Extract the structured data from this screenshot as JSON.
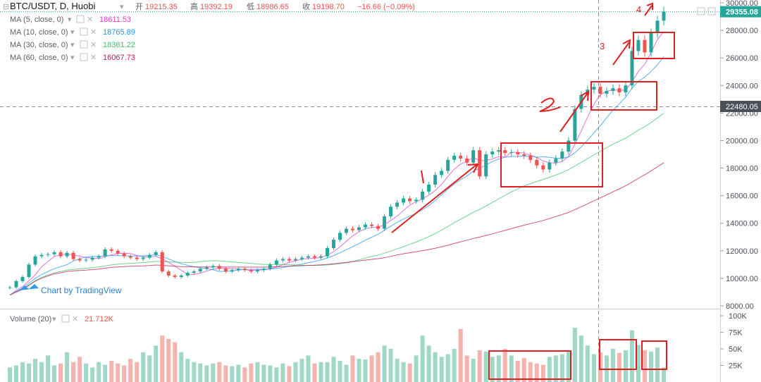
{
  "header": {
    "symbol": "BTC/USDT, D, Huobi",
    "open_label": "开",
    "open": "19215.35",
    "high_label": "高",
    "high": "19392.19",
    "low_label": "低",
    "low": "18986.65",
    "close_label": "收",
    "close": "19198.70",
    "change": "−16.66 (−0.09%)"
  },
  "indicators": [
    {
      "label": "MA (5, close, 0)",
      "value": "18611.53",
      "color": "#e040c8"
    },
    {
      "label": "MA (10, close, 0)",
      "value": "18765.89",
      "color": "#2196f3"
    },
    {
      "label": "MA (30, close, 0)",
      "value": "18361.22",
      "color": "#3cc46a"
    },
    {
      "label": "MA (60, close, 0)",
      "value": "16067.73",
      "color": "#c2185b"
    }
  ],
  "volume_panel": {
    "label": "Volume (20)",
    "value": "21.712K"
  },
  "watermark": "Chart by TradingView",
  "price_axis": {
    "ticks": [
      "30000.00",
      "28000.00",
      "26000.00",
      "24000.00",
      "22480.05",
      "22000.00",
      "20000.00",
      "18000.00",
      "16000.00",
      "14000.00",
      "12000.00",
      "10000.00",
      "8000.00"
    ],
    "last_price": "29355.08",
    "crosshair_price": "22480.05"
  },
  "volume_axis": {
    "ticks": [
      "100K",
      "75K",
      "50K",
      "25K"
    ]
  },
  "annotations": [
    "1",
    "2",
    "3",
    "4"
  ],
  "colors": {
    "up": "#26a69a",
    "down": "#ef5350",
    "annotation": "#e02020",
    "last_price_bg": "#26a69a"
  },
  "chart_data": {
    "type": "candlestick",
    "series": [
      {
        "name": "BTC/USDT, D, Huobi",
        "values": [
          9350,
          9800,
          10100,
          11000,
          11600,
          11700,
          11750,
          11900,
          11600,
          11850,
          11400,
          11300,
          11350,
          11500,
          11600,
          12100,
          12000,
          11800,
          11600,
          11500,
          11400,
          11500,
          11700,
          11900,
          10500,
          10200,
          10100,
          10200,
          10400,
          10500,
          10700,
          10800,
          10900,
          10700,
          10500,
          10600,
          10700,
          10600,
          10500,
          10600,
          10700,
          11000,
          11300,
          11400,
          11300,
          11400,
          11500,
          11600,
          11500,
          11600,
          12200,
          12800,
          13300,
          13600,
          13500,
          13700,
          13900,
          13800,
          13600,
          14500,
          15200,
          15500,
          15800,
          15600,
          15700,
          16300,
          16800,
          17500,
          17800,
          18600,
          18900,
          18700,
          18400,
          19300,
          17400,
          19000,
          19200,
          19300,
          19100,
          19150,
          19000,
          18900,
          18600,
          18200,
          17900,
          18400,
          18700,
          19200,
          20000,
          22300,
          23300,
          23700,
          23900,
          23400,
          23600,
          23800,
          23500,
          24000,
          26500,
          27300,
          26400,
          27800,
          28700,
          29355
        ]
      },
      {
        "name": "Volume",
        "values": [
          22,
          25,
          30,
          28,
          35,
          30,
          40,
          25,
          28,
          45,
          30,
          38,
          28,
          22,
          30,
          26,
          32,
          28,
          25,
          35,
          30,
          45,
          40,
          55,
          70,
          65,
          60,
          45,
          35,
          30,
          28,
          25,
          28,
          30,
          25,
          24,
          26,
          22,
          28,
          30,
          26,
          25,
          22,
          28,
          24,
          30,
          35,
          40,
          28,
          30,
          30,
          38,
          32,
          26,
          40,
          35,
          34,
          40,
          45,
          55,
          50,
          35,
          30,
          28,
          40,
          70,
          55,
          45,
          38,
          42,
          50,
          80,
          40,
          35,
          48,
          46,
          38,
          40,
          50,
          40,
          32,
          36,
          30,
          28,
          26,
          38,
          40,
          42,
          46,
          82,
          70,
          55,
          42,
          45,
          40,
          50,
          44,
          48,
          78,
          56,
          48,
          46,
          52,
          22
        ]
      },
      {
        "name": "MA (5, close, 0)",
        "values": [
          18611.53
        ]
      },
      {
        "name": "MA (10, close, 0)",
        "values": [
          18765.89
        ]
      },
      {
        "name": "MA (30, close, 0)",
        "values": [
          18361.22
        ]
      },
      {
        "name": "MA (60, close, 0)",
        "values": [
          16067.73
        ]
      }
    ],
    "price_range": [
      8000,
      30000
    ],
    "volume_range": [
      0,
      100
    ]
  }
}
